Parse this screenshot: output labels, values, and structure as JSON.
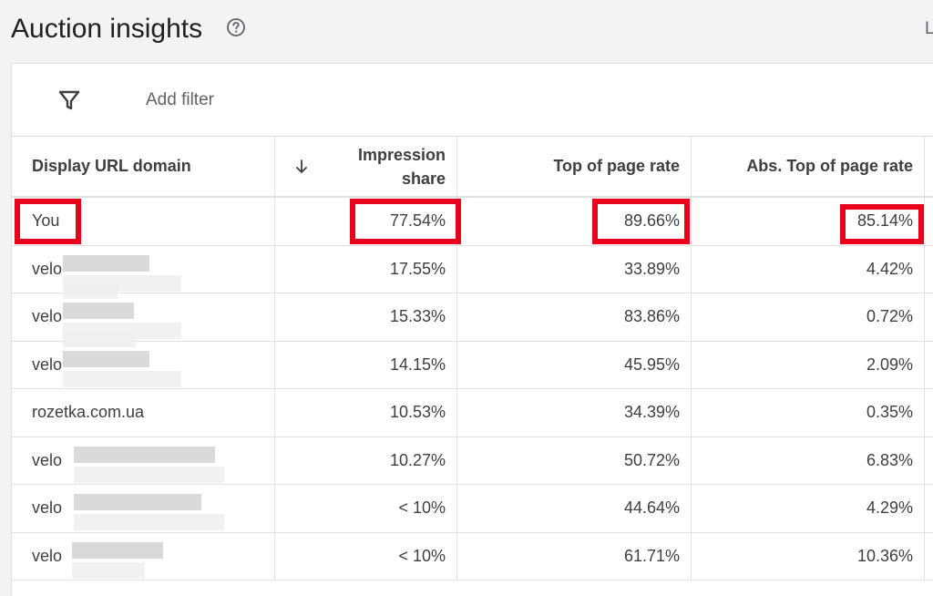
{
  "header": {
    "title": "Auction insights",
    "help_icon": "help-circle-icon",
    "cut_text": "L"
  },
  "filter_bar": {
    "filter_icon": "filter-funnel-icon",
    "add_filter_label": "Add filter"
  },
  "table": {
    "columns": {
      "domain": "Display URL domain",
      "sort_icon": "arrow-down-icon",
      "impression_share_line1": "Impression",
      "impression_share_line2": "share",
      "top_of_page_rate": "Top of page rate",
      "abs_top_of_page_rate": "Abs. Top of page rate"
    },
    "rows": [
      {
        "domain": "You",
        "impression_share": "77.54%",
        "top_of_page_rate": "89.66%",
        "abs_top_of_page_rate": "85.14%",
        "highlighted": true
      },
      {
        "domain": "velo",
        "impression_share": "17.55%",
        "top_of_page_rate": "33.89%",
        "abs_top_of_page_rate": "4.42%",
        "redacted": true
      },
      {
        "domain": "velo",
        "impression_share": "15.33%",
        "top_of_page_rate": "83.86%",
        "abs_top_of_page_rate": "0.72%",
        "redacted": true
      },
      {
        "domain": "velo",
        "impression_share": "14.15%",
        "top_of_page_rate": "45.95%",
        "abs_top_of_page_rate": "2.09%",
        "redacted": true
      },
      {
        "domain": "rozetka.com.ua",
        "impression_share": "10.53%",
        "top_of_page_rate": "34.39%",
        "abs_top_of_page_rate": "0.35%"
      },
      {
        "domain": "velo",
        "impression_share": "10.27%",
        "top_of_page_rate": "50.72%",
        "abs_top_of_page_rate": "6.83%",
        "redacted": true
      },
      {
        "domain": "velo",
        "impression_share": "< 10%",
        "top_of_page_rate": "44.64%",
        "abs_top_of_page_rate": "4.29%",
        "redacted": true
      },
      {
        "domain": "velo",
        "impression_share": "< 10%",
        "top_of_page_rate": "61.71%",
        "abs_top_of_page_rate": "10.36%",
        "redacted": true
      }
    ]
  },
  "colors": {
    "highlight": "#e8001c",
    "background": "#f1f3f4",
    "card": "#ffffff",
    "text": "#3c4043"
  }
}
